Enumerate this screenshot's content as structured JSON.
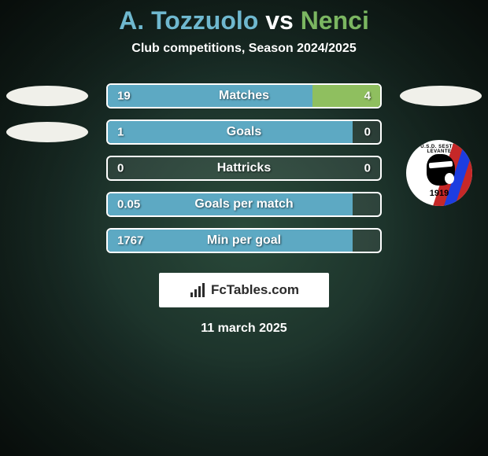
{
  "title": {
    "player1": "A. Tozzuolo",
    "vs": " vs ",
    "player2": "Nenci",
    "color1": "#6fb8cf",
    "color_vs": "#ffffff",
    "color2": "#7bb661"
  },
  "subtitle": "Club competitions, Season 2024/2025",
  "ellipse_color": "#f0f0ea",
  "rows": [
    {
      "label": "Matches",
      "left_val": "19",
      "right_val": "4",
      "left_pct": 75,
      "right_pct": 25,
      "color_left": "#5da9c3",
      "color_right": "#8fbf5f",
      "show_left_ellipse": true,
      "show_right_ellipse": true,
      "show_right_shadow": false
    },
    {
      "label": "Goals",
      "left_val": "1",
      "right_val": "0",
      "left_pct": 90,
      "right_pct": 0,
      "color_left": "#5da9c3",
      "color_right": "#8fbf5f",
      "show_left_ellipse": true,
      "show_right_ellipse": false,
      "show_right_shadow": false
    },
    {
      "label": "Hattricks",
      "left_val": "0",
      "right_val": "0",
      "left_pct": 0,
      "right_pct": 0,
      "color_left": "#5da9c3",
      "color_right": "#8fbf5f",
      "show_left_ellipse": false,
      "show_right_ellipse": false,
      "show_right_shadow": true
    },
    {
      "label": "Goals per match",
      "left_val": "0.05",
      "right_val": "",
      "left_pct": 90,
      "right_pct": 0,
      "color_left": "#5da9c3",
      "color_right": "#8fbf5f",
      "show_left_ellipse": false,
      "show_right_ellipse": false,
      "show_right_shadow": false
    },
    {
      "label": "Min per goal",
      "left_val": "1767",
      "right_val": "",
      "left_pct": 90,
      "right_pct": 0,
      "color_left": "#5da9c3",
      "color_right": "#8fbf5f",
      "show_left_ellipse": false,
      "show_right_ellipse": false,
      "show_right_shadow": false
    }
  ],
  "crest": {
    "arc_text": "U.S.D. SESTRI LEVANTE",
    "year": "1919",
    "stripe_colors": [
      "#c62828",
      "#1d3de0",
      "#c62828"
    ]
  },
  "brand": "FcTables.com",
  "date": "11 march 2025"
}
